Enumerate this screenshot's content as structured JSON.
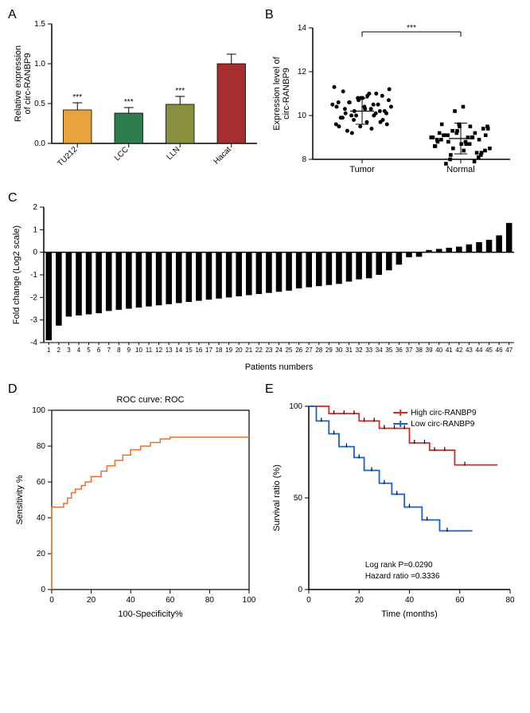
{
  "panelA": {
    "label": "A",
    "type": "bar",
    "ylabel": "Relative expression\nof circ-RANBP9",
    "categories": [
      "TU212",
      "LCC",
      "LLN",
      "Hacat"
    ],
    "values": [
      0.42,
      0.38,
      0.49,
      1.0
    ],
    "errors": [
      0.09,
      0.07,
      0.1,
      0.12
    ],
    "bar_colors": [
      "#e8a33d",
      "#2e7d4f",
      "#8a8e3f",
      "#a62e2e"
    ],
    "sig": [
      "***",
      "***",
      "***",
      ""
    ],
    "ylim": [
      0,
      1.5
    ],
    "ytick_step": 0.5,
    "background": "#ffffff"
  },
  "panelB": {
    "label": "B",
    "type": "scatter",
    "ylabel": "Expression level of\ncirc-RANBP9",
    "categories": [
      "Tumor",
      "Normal"
    ],
    "ylim": [
      8,
      14
    ],
    "ytick_step": 2,
    "sig": "***",
    "tumor_points": [
      10.5,
      10.2,
      11.0,
      9.5,
      10.8,
      9.8,
      10.1,
      10.9,
      11.2,
      9.2,
      10.0,
      10.4,
      10.7,
      9.7,
      11.1,
      10.3,
      9.6,
      10.6,
      9.4,
      11.3,
      10.0,
      10.5,
      9.9,
      10.8,
      10.2,
      9.3,
      11.0,
      10.4,
      9.8,
      10.1,
      10.6,
      9.5,
      10.9,
      10.3,
      9.7,
      10.7,
      10.0,
      10.5,
      9.6,
      10.8,
      10.2,
      9.9,
      10.4,
      10.1,
      10.6,
      10.3
    ],
    "normal_points": [
      9.0,
      8.5,
      9.2,
      8.8,
      9.5,
      8.3,
      9.1,
      8.7,
      9.4,
      8.2,
      9.0,
      8.6,
      9.3,
      8.9,
      9.6,
      8.4,
      9.1,
      8.8,
      9.5,
      9.0,
      10.2,
      8.3,
      9.2,
      8.7,
      9.4,
      7.8,
      9.0,
      8.5,
      9.3,
      7.9,
      8.9,
      9.6,
      8.2,
      9.1,
      8.8,
      9.5,
      8.0,
      9.0,
      8.6,
      9.2,
      8.1,
      8.9,
      10.4,
      8.4,
      9.1,
      8.7
    ],
    "tumor_mean": 10.2,
    "tumor_sd": 0.6,
    "normal_mean": 8.95,
    "normal_sd": 0.7,
    "background": "#ffffff"
  },
  "panelC": {
    "label": "C",
    "type": "bar",
    "ylabel": "Fold change (Log2 scale)",
    "xlabel": "Patients numbers",
    "values": [
      -3.9,
      -3.25,
      -2.85,
      -2.8,
      -2.75,
      -2.7,
      -2.6,
      -2.55,
      -2.5,
      -2.45,
      -2.4,
      -2.35,
      -2.3,
      -2.25,
      -2.2,
      -2.15,
      -2.1,
      -2.05,
      -2.0,
      -1.95,
      -1.9,
      -1.85,
      -1.8,
      -1.75,
      -1.7,
      -1.6,
      -1.55,
      -1.5,
      -1.45,
      -1.4,
      -1.3,
      -1.2,
      -1.15,
      -1.0,
      -0.8,
      -0.55,
      -0.22,
      -0.2,
      0.1,
      0.15,
      0.2,
      0.25,
      0.35,
      0.45,
      0.55,
      0.75,
      1.3
    ],
    "bar_color": "#000000",
    "ylim": [
      -4,
      2
    ],
    "ytick_step": 1,
    "background": "#ffffff"
  },
  "panelD": {
    "label": "D",
    "type": "line",
    "title": "ROC curve: ROC",
    "ylabel": "Sensitivity %",
    "xlabel": "100-Specificity%",
    "xlim": [
      0,
      100
    ],
    "ylim": [
      0,
      100
    ],
    "tick_step": 20,
    "line_color": "#e8702e",
    "points": [
      [
        0,
        0
      ],
      [
        0,
        46
      ],
      [
        4,
        46
      ],
      [
        6,
        48
      ],
      [
        8,
        51
      ],
      [
        10,
        54
      ],
      [
        12,
        56
      ],
      [
        15,
        58
      ],
      [
        17,
        60
      ],
      [
        20,
        63
      ],
      [
        25,
        66
      ],
      [
        28,
        69
      ],
      [
        32,
        72
      ],
      [
        36,
        75
      ],
      [
        40,
        78
      ],
      [
        45,
        80
      ],
      [
        50,
        82
      ],
      [
        55,
        84
      ],
      [
        60,
        85
      ],
      [
        100,
        85
      ]
    ],
    "background": "#ffffff"
  },
  "panelE": {
    "label": "E",
    "type": "survival",
    "ylabel": "Survival ratio (%)",
    "xlabel": "Time (months)",
    "xlim": [
      0,
      80
    ],
    "ylim": [
      0,
      100
    ],
    "xtick_step": 20,
    "ytick_step": 50,
    "legend": [
      "High circ-RANBP9",
      "Low circ-RANBP9"
    ],
    "colors": [
      "#d62728",
      "#1f5fbf"
    ],
    "high_steps": [
      [
        0,
        100
      ],
      [
        8,
        100
      ],
      [
        8,
        96
      ],
      [
        15,
        96
      ],
      [
        20,
        96
      ],
      [
        20,
        92
      ],
      [
        28,
        92
      ],
      [
        28,
        88
      ],
      [
        35,
        88
      ],
      [
        40,
        88
      ],
      [
        40,
        80
      ],
      [
        48,
        80
      ],
      [
        48,
        76
      ],
      [
        58,
        76
      ],
      [
        58,
        68
      ],
      [
        75,
        68
      ]
    ],
    "low_steps": [
      [
        0,
        100
      ],
      [
        3,
        100
      ],
      [
        3,
        92
      ],
      [
        8,
        92
      ],
      [
        8,
        85
      ],
      [
        12,
        85
      ],
      [
        12,
        78
      ],
      [
        18,
        78
      ],
      [
        18,
        72
      ],
      [
        22,
        72
      ],
      [
        22,
        65
      ],
      [
        28,
        65
      ],
      [
        28,
        58
      ],
      [
        33,
        58
      ],
      [
        33,
        52
      ],
      [
        38,
        52
      ],
      [
        38,
        45
      ],
      [
        45,
        45
      ],
      [
        45,
        38
      ],
      [
        52,
        38
      ],
      [
        52,
        32
      ],
      [
        65,
        32
      ]
    ],
    "high_ticks": [
      10,
      14,
      18,
      22,
      26,
      30,
      34,
      38,
      42,
      46,
      50,
      54,
      62
    ],
    "low_ticks": [
      5,
      10,
      15,
      20,
      25,
      30,
      35,
      40,
      47,
      55
    ],
    "annot1": "Log rank P=0.0290",
    "annot2": "Hazard ratio =0.3336",
    "background": "#ffffff"
  }
}
